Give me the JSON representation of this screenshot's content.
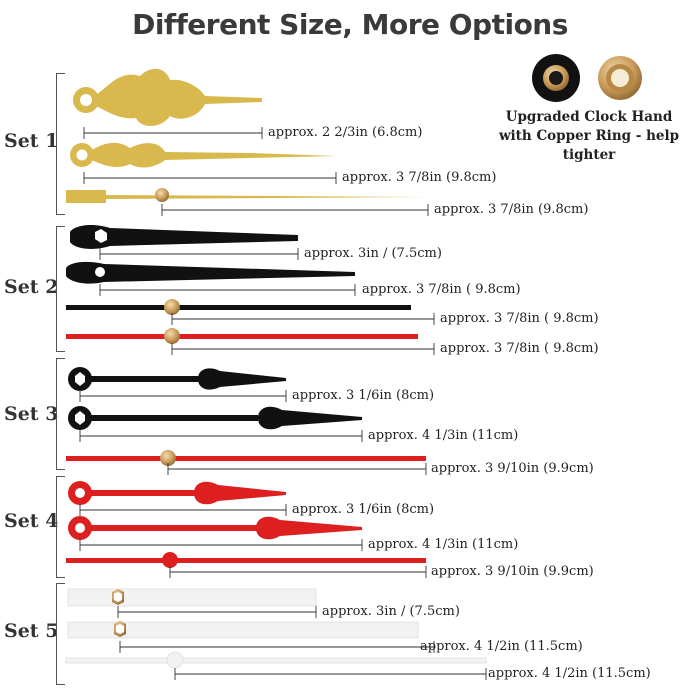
{
  "title": "Different Size, More Options",
  "ring": {
    "caption_line1": "Upgraded Clock Hand",
    "caption_line2": "with Copper Ring - help tighter"
  },
  "sets": [
    {
      "label": "Set 1",
      "color": "gold",
      "hands": [
        {
          "kind": "hour",
          "size": "approx. 2 2/3in (6.8cm)"
        },
        {
          "kind": "minute",
          "size": "approx. 3 7/8in (9.8cm)"
        },
        {
          "kind": "second",
          "size": "approx. 3 7/8in (9.8cm)"
        }
      ]
    },
    {
      "label": "Set 2",
      "color": "black/red",
      "hands": [
        {
          "kind": "hour",
          "size": "approx. 3in / (7.5cm)"
        },
        {
          "kind": "minute",
          "size": "approx. 3 7/8in ( 9.8cm)"
        },
        {
          "kind": "second",
          "size": "approx. 3 7/8in ( 9.8cm)"
        },
        {
          "kind": "second",
          "size": "approx. 3 7/8in ( 9.8cm)"
        }
      ]
    },
    {
      "label": "Set 3",
      "color": "black/red",
      "hands": [
        {
          "kind": "hour",
          "size": "approx. 3 1/6in (8cm)"
        },
        {
          "kind": "minute",
          "size": "approx. 4 1/3in (11cm)"
        },
        {
          "kind": "second",
          "size": "approx. 3 9/10in (9.9cm)"
        }
      ]
    },
    {
      "label": "Set 4",
      "color": "red",
      "hands": [
        {
          "kind": "hour",
          "size": "approx. 3 1/6in (8cm)"
        },
        {
          "kind": "minute",
          "size": "approx. 4 1/3in (11cm)"
        },
        {
          "kind": "second",
          "size": "approx. 3 9/10in (9.9cm)"
        }
      ]
    },
    {
      "label": "Set 5",
      "color": "white",
      "hands": [
        {
          "kind": "hour",
          "size": "approx. 3in / (7.5cm)"
        },
        {
          "kind": "minute",
          "size": "approx. 4 1/2in (11.5cm)"
        },
        {
          "kind": "second",
          "size": "approx. 4 1/2in (11.5cm)"
        }
      ]
    }
  ],
  "colors": {
    "gold": "#d9b84e",
    "black": "#111111",
    "red": "#dd1f1f",
    "white": "#f2f2f2",
    "copper": "#c99a57"
  }
}
